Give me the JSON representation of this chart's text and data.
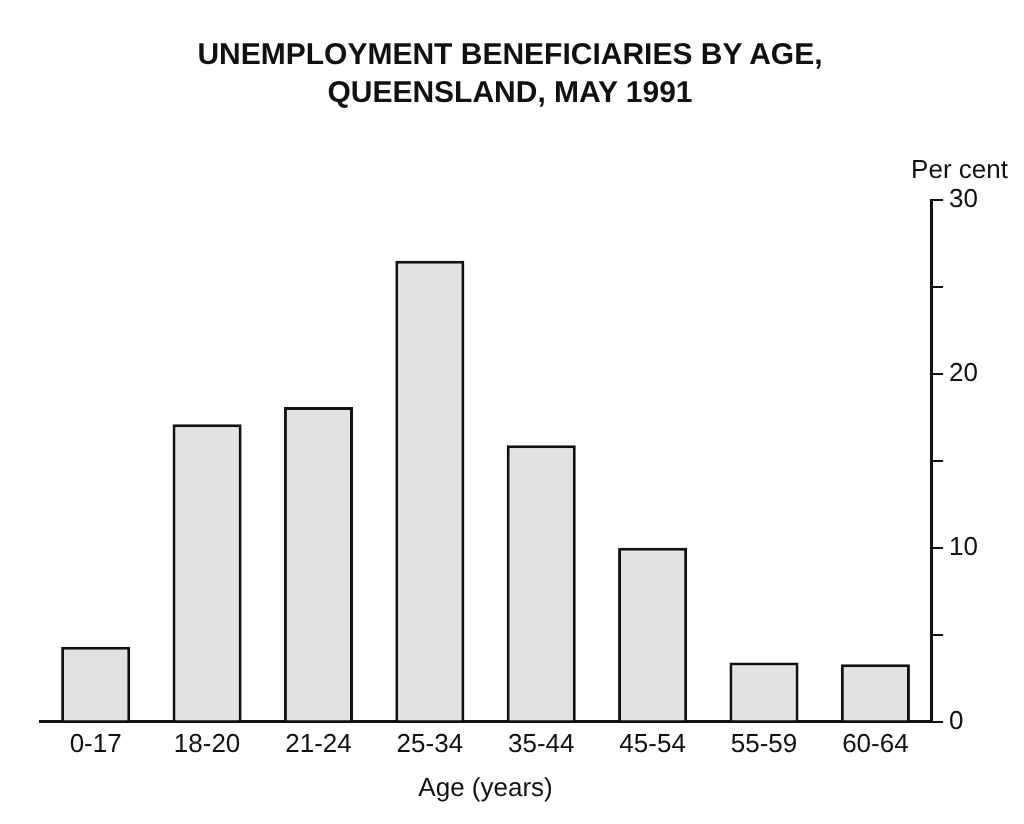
{
  "chart_data": {
    "type": "bar",
    "title": "UNEMPLOYMENT BENEFICIARIES BY AGE, QUEENSLAND, MAY 1991",
    "xlabel": "Age (years)",
    "ylabel": "Per cent",
    "categories": [
      "0-17",
      "18-20",
      "21-24",
      "25-34",
      "35-44",
      "45-54",
      "55-59",
      "60-64"
    ],
    "values": [
      4.3,
      17.1,
      18.1,
      26.5,
      15.9,
      10.0,
      3.4,
      3.3
    ],
    "color": "#e2e2e2",
    "ylim": [
      0,
      30
    ],
    "yticks": [
      0,
      {
        "value": 5,
        "label": null
      },
      10,
      {
        "value": 15,
        "label": null
      },
      20,
      {
        "value": 25,
        "label": null
      },
      30
    ],
    "grid": false,
    "legend": false
  }
}
